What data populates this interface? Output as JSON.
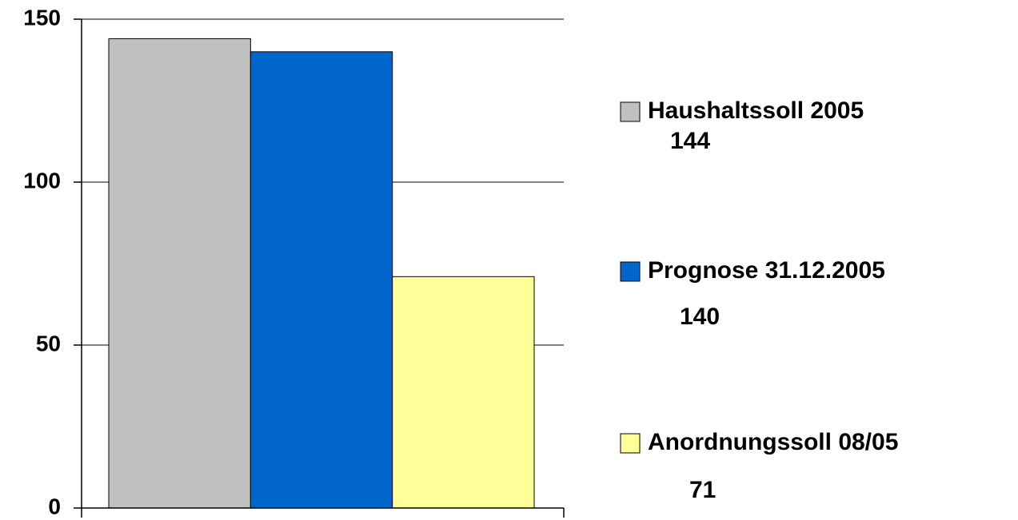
{
  "chart_data": {
    "type": "bar",
    "series": [
      {
        "name": "Haushaltssoll 2005",
        "color": "#c0c0c0",
        "values": [
          144
        ]
      },
      {
        "name": "Prognose 31.12.2005",
        "color": "#0066cc",
        "values": [
          140
        ]
      },
      {
        "name": "Anordnungssoll 08/05",
        "color": "#ffff99",
        "values": [
          71
        ]
      }
    ],
    "ylim": [
      0,
      150
    ],
    "yticks": [
      0,
      50,
      100,
      150
    ],
    "grid": true,
    "legend": "right"
  }
}
